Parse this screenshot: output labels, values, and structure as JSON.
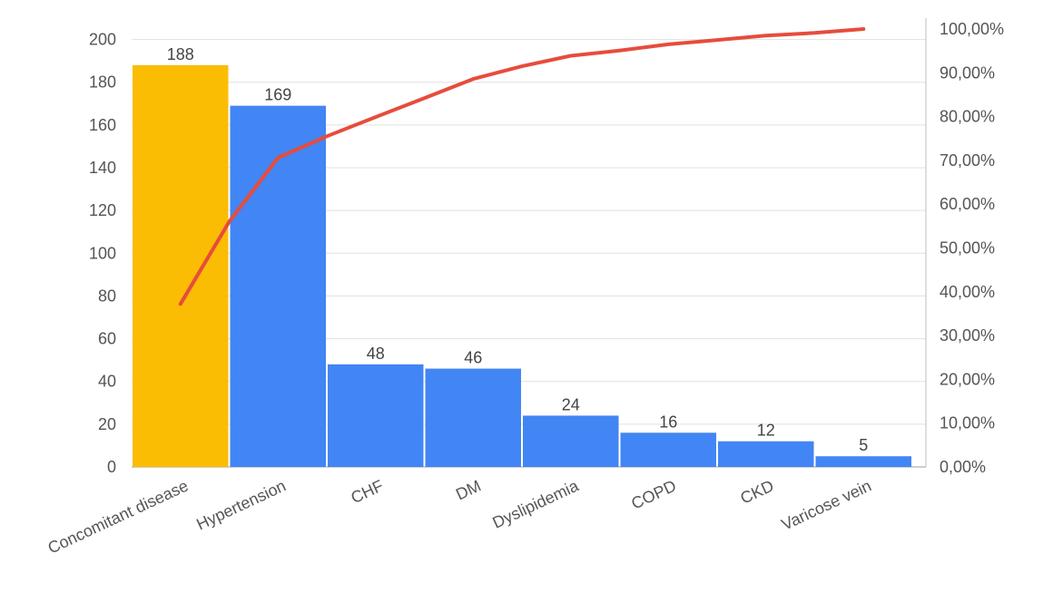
{
  "chart_data": {
    "type": "bar",
    "categories": [
      "Concomitant disease",
      "Hypertension",
      "CHF",
      "DM",
      "Dyslipidemia",
      "COPD",
      "CKD",
      "Varicose vein"
    ],
    "values": [
      188,
      169,
      48,
      46,
      24,
      16,
      12,
      5
    ],
    "data_labels": [
      "188",
      "169",
      "48",
      "46",
      "24",
      "16",
      "12",
      "5"
    ],
    "bar_colors": [
      "#fbbc04",
      "#4285f4",
      "#4285f4",
      "#4285f4",
      "#4285f4",
      "#4285f4",
      "#4285f4",
      "#4285f4"
    ],
    "y_ticks": [
      "0",
      "20",
      "40",
      "60",
      "80",
      "100",
      "120",
      "140",
      "160",
      "180",
      "200"
    ],
    "y_tick_values": [
      0,
      20,
      40,
      60,
      80,
      100,
      120,
      140,
      160,
      180,
      200
    ],
    "ylim": [
      0,
      210
    ],
    "y2_ticks": [
      "0,00%",
      "10,00%",
      "20,00%",
      "30,00%",
      "40,00%",
      "50,00%",
      "60,00%",
      "70,00%",
      "80,00%",
      "90,00%",
      "100,00%"
    ],
    "y2_tick_values": [
      0,
      10,
      20,
      30,
      40,
      50,
      60,
      70,
      80,
      90,
      100
    ],
    "y2lim": [
      0,
      100
    ],
    "line_series": {
      "type": "line",
      "axis": "right",
      "color": "#e74c3c",
      "x": [
        0.5,
        1.0,
        1.5,
        2.0,
        2.5,
        3.0,
        3.5,
        4.0,
        4.5,
        5.0,
        5.5,
        6.0,
        6.5,
        7.0,
        7.5
      ],
      "values": [
        37.2,
        56.0,
        70.6,
        75.5,
        79.9,
        84.2,
        88.6,
        91.5,
        93.9,
        95.1,
        96.5,
        97.5,
        98.5,
        99.1,
        100.0
      ]
    },
    "grid": true,
    "legend": "none"
  }
}
